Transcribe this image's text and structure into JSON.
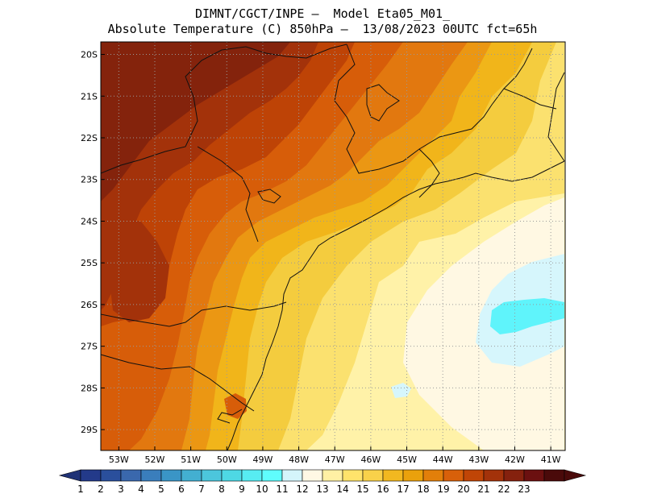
{
  "title": {
    "line1": "DIMNT/CGCT/INPE –  Model Eta05_M01_",
    "line2": "Absolute Temperature (C) 850hPa –  13/08/2023 00UTC fct=65h"
  },
  "map": {
    "lat_range": [
      -29.5,
      -19.7
    ],
    "lon_range": [
      -53.5,
      -40.6
    ],
    "lat_labels": [
      "20S",
      "21S",
      "22S",
      "23S",
      "24S",
      "25S",
      "26S",
      "27S",
      "28S",
      "29S"
    ],
    "lat_values": [
      -20,
      -21,
      -22,
      -23,
      -24,
      -25,
      -26,
      -27,
      -28,
      -29
    ],
    "lon_labels": [
      "53W",
      "52W",
      "51W",
      "50W",
      "49W",
      "48W",
      "47W",
      "46W",
      "45W",
      "44W",
      "43W",
      "42W",
      "41W"
    ],
    "lon_values": [
      -53,
      -52,
      -51,
      -50,
      -49,
      -48,
      -47,
      -46,
      -45,
      -44,
      -43,
      -42,
      -41
    ],
    "field": "Absolute Temperature (C) 850hPa"
  },
  "colorbar": {
    "labels": [
      "1",
      "2",
      "3",
      "4",
      "5",
      "6",
      "7",
      "8",
      "9",
      "10",
      "11",
      "12",
      "13",
      "14",
      "15",
      "16",
      "17",
      "18",
      "19",
      "20",
      "21",
      "22",
      "23"
    ],
    "colors": [
      "#233a8a",
      "#2a4f9c",
      "#3a68ad",
      "#3a7ebc",
      "#3a95c6",
      "#43afd1",
      "#4cc6dc",
      "#4ed8e4",
      "#57ecf2",
      "#5ffdfd",
      "#d4f5fb",
      "#fff8e4",
      "#fff0a4",
      "#ffe36b",
      "#f9d14a",
      "#f2b820",
      "#eaa10c",
      "#e27f0a",
      "#d8600a",
      "#c04506",
      "#a3320a",
      "#85210e",
      "#6b1010",
      "#4a0a0a"
    ],
    "left_arrow_color": "#1f3276",
    "right_arrow_color": "#4a0a0a"
  },
  "palette": {
    "c23": "#6e1a0e",
    "c22": "#84230c",
    "c21": "#a3320a",
    "c20": "#be4306",
    "c19": "#d75d09",
    "c18": "#e2780f",
    "c17": "#eb9713",
    "c16": "#f1b51a",
    "c15": "#f4cc3e",
    "c14": "#fbe16f",
    "c13": "#fff2a8",
    "c12": "#fff8e3",
    "c11": "#d6f6fc",
    "c10": "#5ff4fb"
  }
}
